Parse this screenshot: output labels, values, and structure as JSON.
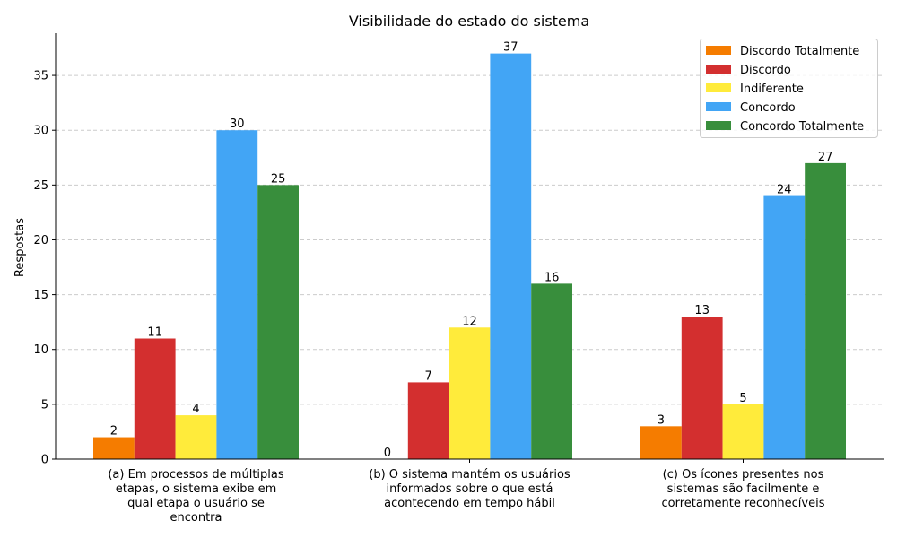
{
  "chart_data": {
    "type": "bar",
    "title": "Visibilidade do estado do sistema",
    "xlabel": "",
    "ylabel": "Respostas",
    "ylim": [
      0,
      38.85
    ],
    "yticks": [
      0,
      5,
      10,
      15,
      20,
      25,
      30,
      35
    ],
    "grid": "y-dashed",
    "legend_position": "top-right",
    "categories": [
      [
        "(a) Em processos de múltiplas",
        "etapas, o sistema exibe em",
        "qual etapa o usuário se",
        "encontra"
      ],
      [
        "(b) O sistema mantém os usuários",
        "informados sobre o que está",
        "acontecendo em tempo hábil"
      ],
      [
        "(c) Os ícones presentes nos",
        "sistemas são facilmente e",
        "corretamente reconhecíveis"
      ]
    ],
    "series": [
      {
        "name": "Discordo Totalmente",
        "color": "#f57c00",
        "values": [
          2,
          0,
          3
        ]
      },
      {
        "name": "Discordo",
        "color": "#d32f2f",
        "values": [
          11,
          7,
          13
        ]
      },
      {
        "name": "Indiferente",
        "color": "#ffeb3b",
        "values": [
          4,
          12,
          5
        ]
      },
      {
        "name": "Concordo",
        "color": "#42a5f5",
        "values": [
          30,
          37,
          24
        ]
      },
      {
        "name": "Concordo Totalmente",
        "color": "#388e3c",
        "values": [
          25,
          16,
          27
        ]
      }
    ]
  }
}
